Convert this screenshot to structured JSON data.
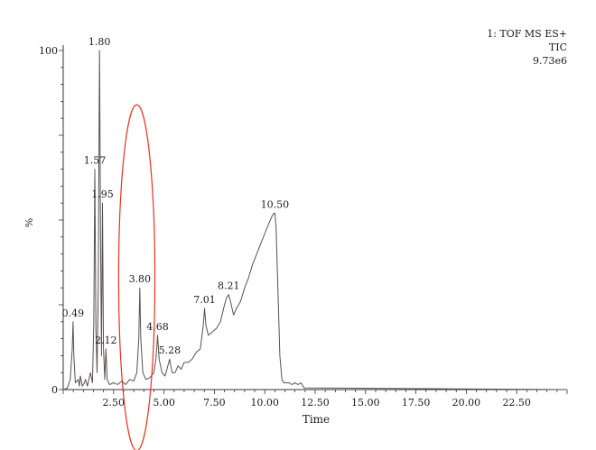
{
  "header": {
    "line1": "1: TOF MS ES+",
    "line2": "TIC",
    "line3": "9.73e6"
  },
  "colors": {
    "trace": "#5a5050",
    "axis": "#333333",
    "highlight": "#e8321e"
  },
  "chart_data": {
    "type": "line",
    "title": "",
    "xlabel": "Time",
    "ylabel": "%",
    "xlim": [
      0,
      25.0
    ],
    "ylim": [
      0,
      100
    ],
    "x_ticks": [
      2.5,
      5.0,
      7.5,
      10.0,
      12.5,
      15.0,
      17.5,
      20.0,
      22.5
    ],
    "x_tick_labels": [
      "2.50",
      "5.00",
      "7.50",
      "10.00",
      "12.50",
      "15.00",
      "17.50",
      "20.00",
      "22.50"
    ],
    "y_tick_labels": [
      {
        "value": 0,
        "label": "0"
      },
      {
        "value": 100,
        "label": "100"
      }
    ],
    "grid": false,
    "peaks": [
      {
        "time": 0.49,
        "label": "0.49",
        "intensity": 20
      },
      {
        "time": 1.57,
        "label": "1.57",
        "intensity": 65
      },
      {
        "time": 1.8,
        "label": "1.80",
        "intensity": 100
      },
      {
        "time": 1.95,
        "label": "1.95",
        "intensity": 55
      },
      {
        "time": 2.12,
        "label": "2.12",
        "intensity": 12
      },
      {
        "time": 3.8,
        "label": "3.80",
        "intensity": 30
      },
      {
        "time": 4.68,
        "label": "4.68",
        "intensity": 16
      },
      {
        "time": 5.28,
        "label": "5.28",
        "intensity": 9
      },
      {
        "time": 7.01,
        "label": "7.01",
        "intensity": 24
      },
      {
        "time": 8.21,
        "label": "8.21",
        "intensity": 28
      },
      {
        "time": 10.5,
        "label": "10.50",
        "intensity": 52
      }
    ],
    "series": [
      {
        "x": [
          0.0,
          0.2,
          0.35,
          0.45,
          0.49,
          0.53,
          0.6,
          0.75,
          0.8,
          0.85,
          0.95,
          1.05,
          1.1,
          1.2,
          1.35,
          1.45,
          1.52,
          1.57,
          1.62,
          1.68,
          1.74,
          1.8,
          1.86,
          1.9,
          1.95,
          2.0,
          2.06,
          2.12,
          2.18,
          2.3,
          2.5,
          2.7,
          2.9,
          3.1,
          3.3,
          3.5,
          3.65,
          3.75,
          3.8,
          3.85,
          3.95,
          4.1,
          4.3,
          4.5,
          4.6,
          4.68,
          4.76,
          4.9,
          5.05,
          5.15,
          5.28,
          5.4,
          5.55,
          5.7,
          5.85,
          6.0,
          6.2,
          6.4,
          6.6,
          6.8,
          6.95,
          7.01,
          7.08,
          7.2,
          7.4,
          7.6,
          7.8,
          8.0,
          8.1,
          8.21,
          8.3,
          8.45,
          8.6,
          8.8,
          9.0,
          9.2,
          9.4,
          9.6,
          9.8,
          10.0,
          10.2,
          10.35,
          10.45,
          10.5,
          10.56,
          10.65,
          10.75,
          10.85,
          10.95,
          11.05,
          11.2,
          11.35,
          11.5,
          11.65,
          11.8,
          11.95,
          25.0
        ],
        "y": [
          0,
          0.4,
          3,
          12,
          20,
          10,
          2,
          3,
          1,
          4,
          1,
          2,
          3,
          1,
          5,
          2,
          20,
          65,
          18,
          5,
          30,
          100,
          40,
          10,
          55,
          12,
          3,
          12,
          3,
          1.5,
          2,
          1.5,
          2.5,
          1.5,
          3,
          2.5,
          5,
          15,
          30,
          15,
          5,
          3,
          3.5,
          5,
          9,
          16,
          9,
          5,
          4,
          6,
          9,
          5,
          5,
          7,
          6,
          8,
          8,
          9,
          11,
          12,
          19,
          24,
          19,
          16,
          17,
          18,
          20,
          25,
          27,
          28,
          26,
          22,
          24,
          26,
          30,
          33,
          37,
          40,
          43,
          46,
          49,
          51,
          52,
          52,
          48,
          30,
          10,
          3,
          2,
          2,
          2,
          1.5,
          2,
          1.5,
          2,
          0.5,
          0
        ]
      }
    ],
    "annotations": [
      {
        "type": "ellipse",
        "center_time": 3.65,
        "center_intensity": 33,
        "half_width_time": 0.9,
        "half_height_intensity": 51
      }
    ]
  }
}
